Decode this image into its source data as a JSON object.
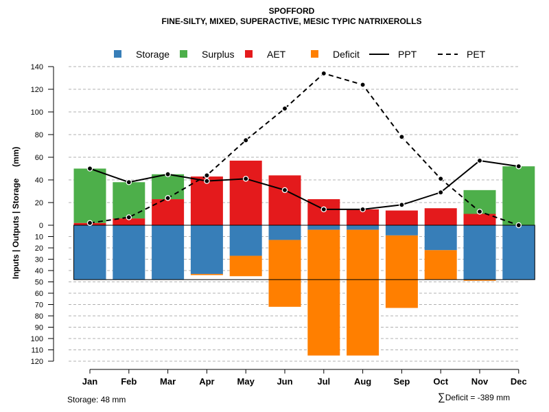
{
  "chart_data": {
    "type": "bar",
    "title": "SPOFFORD",
    "subtitle": "FINE-SILTY, MIXED, SUPERACTIVE, MESIC TYPIC NATRIXEROLLS",
    "ylabel": "Inputs | Outputs | Storage     (mm)",
    "categories": [
      "Jan",
      "Feb",
      "Mar",
      "Apr",
      "May",
      "Jun",
      "Jul",
      "Aug",
      "Sep",
      "Oct",
      "Nov",
      "Dec"
    ],
    "upper_ticks": [
      "0",
      "20",
      "40",
      "60",
      "80",
      "100",
      "120",
      "140"
    ],
    "lower_ticks": [
      "10",
      "20",
      "30",
      "40",
      "50",
      "60",
      "70",
      "80",
      "90",
      "100",
      "110",
      "120"
    ],
    "ylim": [
      -120,
      140
    ],
    "storage_capacity": 48,
    "legend": [
      "Storage",
      "Surplus",
      "AET",
      "Deficit",
      "PPT",
      "PET"
    ],
    "colors": {
      "Storage": "#377EB8",
      "Surplus": "#4DAF4A",
      "AET": "#E41A1C",
      "Deficit": "#FF7F00",
      "line": "#000000"
    },
    "series": [
      {
        "name": "AET",
        "values": [
          2,
          6,
          23,
          43,
          57,
          44,
          23,
          14,
          13,
          15,
          10,
          0
        ]
      },
      {
        "name": "Surplus",
        "values": [
          48,
          32,
          22,
          0,
          0,
          0,
          0,
          0,
          0,
          0,
          21,
          52
        ]
      },
      {
        "name": "Storage",
        "values": [
          48,
          48,
          48,
          43,
          27,
          13,
          4,
          4,
          9,
          22,
          48,
          48
        ]
      },
      {
        "name": "Deficit",
        "values": [
          0,
          0,
          0,
          1,
          18,
          59,
          111,
          111,
          64,
          26,
          1,
          0
        ]
      },
      {
        "name": "PPT",
        "values": [
          50,
          38,
          45,
          39,
          41,
          31,
          14,
          14,
          18,
          29,
          57,
          52
        ]
      },
      {
        "name": "PET",
        "values": [
          2,
          7,
          24,
          44,
          75,
          103,
          134,
          124,
          78,
          41,
          12,
          0
        ]
      }
    ]
  },
  "footer": {
    "storage_label": "Storage: 48 mm",
    "sigma": "∑",
    "deficit_label": "Deficit = -389 mm"
  }
}
